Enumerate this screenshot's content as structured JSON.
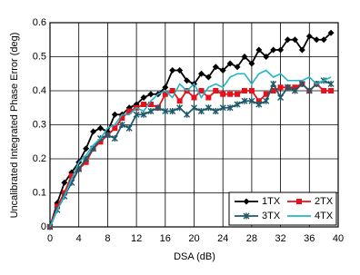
{
  "chart_data": {
    "type": "line",
    "xlabel": "DSA (dB)",
    "ylabel": "Uncalibrated Integrated Phase Error (deg)",
    "x": [
      0,
      1,
      2,
      3,
      4,
      5,
      6,
      7,
      8,
      9,
      10,
      11,
      12,
      13,
      14,
      15,
      16,
      17,
      18,
      19,
      20,
      21,
      22,
      23,
      24,
      25,
      26,
      27,
      28,
      29,
      30,
      31,
      32,
      33,
      34,
      35,
      36,
      37,
      38,
      39
    ],
    "series": [
      {
        "name": "1TX",
        "color": "#000000",
        "marker": "diamond",
        "values": [
          0,
          0.07,
          0.13,
          0.16,
          0.19,
          0.23,
          0.28,
          0.29,
          0.28,
          0.33,
          0.33,
          0.35,
          0.36,
          0.38,
          0.39,
          0.39,
          0.41,
          0.46,
          0.46,
          0.43,
          0.42,
          0.45,
          0.44,
          0.47,
          0.46,
          0.48,
          0.47,
          0.5,
          0.48,
          0.52,
          0.5,
          0.52,
          0.52,
          0.55,
          0.55,
          0.52,
          0.56,
          0.55,
          0.55,
          0.57
        ]
      },
      {
        "name": "2TX",
        "color": "#e8101a",
        "marker": "square",
        "values": [
          0,
          0.06,
          0.1,
          0.15,
          0.17,
          0.19,
          0.23,
          0.25,
          0.27,
          0.29,
          0.32,
          0.34,
          0.35,
          0.36,
          0.36,
          0.35,
          0.39,
          0.4,
          0.37,
          0.4,
          0.38,
          0.4,
          0.38,
          0.4,
          0.39,
          0.39,
          0.39,
          0.4,
          0.4,
          0.37,
          0.39,
          0.4,
          0.41,
          0.41,
          0.41,
          0.42,
          0.4,
          0.42,
          0.4,
          0.4
        ]
      },
      {
        "name": "3TX",
        "color": "#1f5a6a",
        "marker": "star",
        "values": [
          0,
          0.05,
          0.09,
          0.13,
          0.17,
          0.2,
          0.23,
          0.26,
          0.27,
          0.26,
          0.3,
          0.29,
          0.33,
          0.33,
          0.34,
          0.35,
          0.34,
          0.34,
          0.35,
          0.33,
          0.35,
          0.34,
          0.35,
          0.34,
          0.35,
          0.35,
          0.36,
          0.37,
          0.37,
          0.36,
          0.37,
          0.42,
          0.38,
          0.41,
          0.4,
          0.42,
          0.4,
          0.42,
          0.43,
          0.42
        ]
      },
      {
        "name": "4TX",
        "color": "#22b5c8",
        "marker": "none",
        "values": [
          0,
          0.05,
          0.09,
          0.14,
          0.19,
          0.21,
          0.24,
          0.26,
          0.29,
          0.3,
          0.33,
          0.33,
          0.35,
          0.34,
          0.37,
          0.39,
          0.4,
          0.38,
          0.42,
          0.4,
          0.42,
          0.38,
          0.41,
          0.42,
          0.41,
          0.44,
          0.45,
          0.45,
          0.42,
          0.45,
          0.46,
          0.44,
          0.45,
          0.43,
          0.43,
          0.43,
          0.44,
          0.42,
          0.43,
          0.44
        ]
      }
    ],
    "xlim": [
      0,
      40
    ],
    "xticks": [
      0,
      4,
      8,
      12,
      16,
      20,
      24,
      28,
      32,
      36,
      40
    ],
    "ylim": [
      0,
      0.6
    ],
    "yticks": [
      0,
      0.1,
      0.2,
      0.3,
      0.4,
      0.5,
      0.6
    ],
    "grid": true,
    "legend": "lower right"
  }
}
